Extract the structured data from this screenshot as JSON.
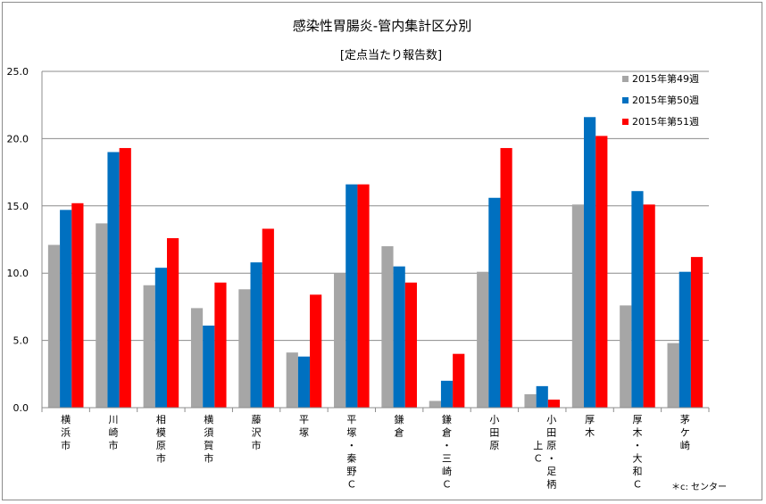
{
  "chart_data": {
    "type": "bar",
    "title": "感染性胃腸炎-管内集計区分別",
    "subtitle": "[定点当たり報告数]",
    "categories": [
      "横浜市",
      "川崎市",
      "相模原市",
      "横須賀市",
      "藤沢市",
      "平塚",
      "平塚・秦野Ｃ",
      "鎌倉",
      "鎌倉・三崎Ｃ",
      "小田原",
      "小田原・足柄上Ｃ",
      "厚木",
      "厚木・大和Ｃ",
      "茅ケ崎"
    ],
    "category_columns": [
      [
        [
          "横",
          "浜",
          "市"
        ]
      ],
      [
        [
          "川",
          "崎",
          "市"
        ]
      ],
      [
        [
          "相",
          "模",
          "原",
          "市"
        ]
      ],
      [
        [
          "横",
          "須",
          "賀",
          "市"
        ]
      ],
      [
        [
          "藤",
          "沢",
          "市"
        ]
      ],
      [
        [
          "平",
          "塚"
        ]
      ],
      [
        [
          "平",
          "塚",
          "・",
          "秦",
          "野",
          "Ｃ"
        ]
      ],
      [
        [
          "鎌",
          "倉"
        ]
      ],
      [
        [
          "鎌",
          "倉",
          "・",
          "三",
          "崎",
          "Ｃ"
        ]
      ],
      [
        [
          "小",
          "田",
          "原"
        ]
      ],
      [
        [
          "",
          "",
          "上",
          "Ｃ"
        ],
        [
          "小",
          "田",
          "原",
          "・",
          "足",
          "柄"
        ]
      ],
      [
        [
          "厚",
          "木"
        ]
      ],
      [
        [
          "厚",
          "木",
          "・",
          "大",
          "和",
          "Ｃ"
        ]
      ],
      [
        [
          "茅",
          "ケ",
          "崎"
        ]
      ]
    ],
    "series": [
      {
        "name": "2015年第49週",
        "color": "#a6a6a6",
        "values": [
          12.1,
          13.7,
          9.1,
          7.4,
          8.8,
          4.1,
          10.0,
          12.0,
          0.5,
          10.1,
          1.0,
          15.1,
          7.6,
          4.8
        ]
      },
      {
        "name": "2015年第50週",
        "color": "#0070c0",
        "values": [
          14.7,
          19.0,
          10.4,
          6.1,
          10.8,
          3.8,
          16.6,
          10.5,
          2.0,
          15.6,
          1.6,
          21.6,
          16.1,
          10.1
        ]
      },
      {
        "name": "2015年第51週",
        "color": "#ff0000",
        "values": [
          15.2,
          19.3,
          12.6,
          9.3,
          13.3,
          8.4,
          16.6,
          9.3,
          4.0,
          19.3,
          0.6,
          20.2,
          15.1,
          11.2
        ]
      }
    ],
    "ylim": [
      0,
      25
    ],
    "yticks": [
      "0.0",
      "5.0",
      "10.0",
      "15.0",
      "20.0",
      "25.0"
    ],
    "grid": true,
    "legend_position": "top-right"
  },
  "footnote": "＊c: センター"
}
